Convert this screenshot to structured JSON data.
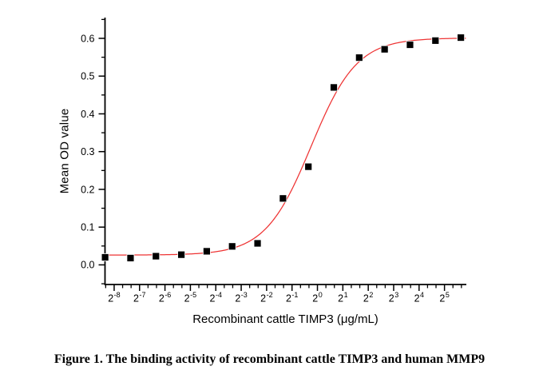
{
  "figure": {
    "caption": "Figure 1. The binding activity of recombinant cattle TIMP3 and human MMP9"
  },
  "chart_data": {
    "type": "scatter",
    "title": "",
    "xlabel": "Recombinant cattle TIMP3 (μg/mL)",
    "ylabel": "Mean OD value",
    "x_scale": "log2",
    "grid": false,
    "legend": false,
    "x_axis": {
      "tick_base": 2,
      "tick_exponents": [
        -8,
        -7,
        -6,
        -5,
        -4,
        -3,
        -2,
        -1,
        0,
        1,
        2,
        3,
        4,
        5
      ],
      "range_exponents": [
        -8.36,
        5.86
      ],
      "minor_ticks_per_octave": 2
    },
    "y_axis": {
      "ticks": [
        0.0,
        0.1,
        0.2,
        0.3,
        0.4,
        0.5,
        0.6
      ],
      "range": [
        -0.052,
        0.655
      ],
      "minor_step": 0.05
    },
    "series": [
      {
        "name": "Mean OD value",
        "marker": "square",
        "color": "#000000",
        "points": [
          [
            0.003052,
            0.02
          ],
          [
            0.006104,
            0.018
          ],
          [
            0.012207,
            0.023
          ],
          [
            0.024414,
            0.027
          ],
          [
            0.048828,
            0.036
          ],
          [
            0.097656,
            0.049
          ],
          [
            0.195313,
            0.057
          ],
          [
            0.390625,
            0.176
          ],
          [
            0.78125,
            0.26
          ],
          [
            1.5625,
            0.47
          ],
          [
            3.125,
            0.549
          ],
          [
            6.25,
            0.571
          ],
          [
            12.5,
            0.583
          ],
          [
            25,
            0.594
          ],
          [
            50,
            0.602
          ]
        ]
      }
    ],
    "fit_curve": {
      "model": "4PL",
      "color": "#ee3333",
      "bottom": 0.026,
      "top": 0.601,
      "ec50_ug_ml": 0.84,
      "hill": 1.6
    }
  }
}
